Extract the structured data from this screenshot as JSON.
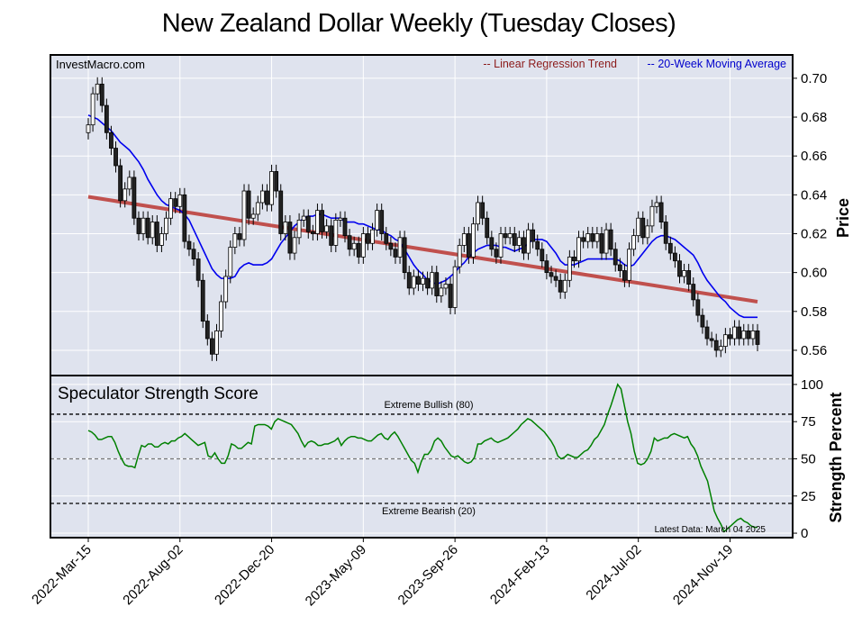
{
  "chart_data": [
    {
      "type": "candlestick",
      "title": "New Zealand Dollar Weekly (Tuesday Closes)",
      "ylabel": "Price",
      "ylim": [
        0.547,
        0.712
      ],
      "yticks": [
        "0.70",
        "0.68",
        "0.66",
        "0.64",
        "0.62",
        "0.60",
        "0.58",
        "0.56"
      ],
      "xticks": [
        "2022-Mar-15",
        "2022-Aug-02",
        "2022-Dec-20",
        "2023-May-09",
        "2023-Sep-26",
        "2024-Feb-13",
        "2024-Jul-02",
        "2024-Nov-19"
      ],
      "source": "InvestMacro.com",
      "legend": [
        "-- Linear Regression Trend",
        "-- 20-Week Moving Average"
      ],
      "closes": [
        0.676,
        0.692,
        0.697,
        0.686,
        0.672,
        0.664,
        0.655,
        0.637,
        0.643,
        0.649,
        0.628,
        0.62,
        0.628,
        0.618,
        0.626,
        0.614,
        0.62,
        0.628,
        0.638,
        0.634,
        0.64,
        0.616,
        0.612,
        0.607,
        0.596,
        0.575,
        0.566,
        0.558,
        0.57,
        0.585,
        0.598,
        0.613,
        0.62,
        0.617,
        0.642,
        0.628,
        0.63,
        0.636,
        0.642,
        0.635,
        0.652,
        0.642,
        0.62,
        0.626,
        0.61,
        0.618,
        0.627,
        0.629,
        0.621,
        0.62,
        0.632,
        0.621,
        0.624,
        0.614,
        0.627,
        0.628,
        0.619,
        0.612,
        0.615,
        0.608,
        0.62,
        0.615,
        0.622,
        0.632,
        0.62,
        0.615,
        0.612,
        0.608,
        0.618,
        0.6,
        0.592,
        0.598,
        0.594,
        0.597,
        0.592,
        0.6,
        0.588,
        0.592,
        0.594,
        0.582,
        0.603,
        0.614,
        0.62,
        0.608,
        0.625,
        0.636,
        0.628,
        0.618,
        0.612,
        0.608,
        0.62,
        0.618,
        0.62,
        0.614,
        0.618,
        0.61,
        0.622,
        0.616,
        0.612,
        0.606,
        0.6,
        0.598,
        0.596,
        0.59,
        0.596,
        0.608,
        0.606,
        0.618,
        0.616,
        0.62,
        0.616,
        0.62,
        0.61,
        0.622,
        0.612,
        0.604,
        0.601,
        0.596,
        0.612,
        0.619,
        0.628,
        0.618,
        0.624,
        0.634,
        0.636,
        0.626,
        0.615,
        0.61,
        0.606,
        0.598,
        0.601,
        0.594,
        0.586,
        0.578,
        0.572,
        0.566,
        0.565,
        0.56,
        0.562,
        0.568,
        0.566,
        0.572,
        0.566,
        0.57,
        0.566,
        0.57,
        0.563
      ],
      "regression_trend": {
        "start": 0.639,
        "end": 0.585
      },
      "moving_average": [
        0.681,
        0.68,
        0.679,
        0.677,
        0.675,
        0.673,
        0.67,
        0.667,
        0.665,
        0.663,
        0.66,
        0.657,
        0.653,
        0.648,
        0.644,
        0.64,
        0.637,
        0.635,
        0.634,
        0.633,
        0.632,
        0.63,
        0.627,
        0.622,
        0.617,
        0.612,
        0.607,
        0.602,
        0.599,
        0.597,
        0.597,
        0.597,
        0.598,
        0.602,
        0.604,
        0.605,
        0.604,
        0.604,
        0.604,
        0.605,
        0.607,
        0.611,
        0.615,
        0.618,
        0.621,
        0.624,
        0.626,
        0.628,
        0.629,
        0.629,
        0.63,
        0.63,
        0.629,
        0.628,
        0.628,
        0.628,
        0.626,
        0.626,
        0.626,
        0.625,
        0.625,
        0.624,
        0.623,
        0.622,
        0.622,
        0.62,
        0.619,
        0.617,
        0.616,
        0.612,
        0.608,
        0.604,
        0.601,
        0.599,
        0.596,
        0.595,
        0.594,
        0.595,
        0.596,
        0.598,
        0.6,
        0.603,
        0.605,
        0.608,
        0.61,
        0.612,
        0.613,
        0.614,
        0.614,
        0.614,
        0.613,
        0.613,
        0.612,
        0.611,
        0.612,
        0.613,
        0.615,
        0.617,
        0.617,
        0.617,
        0.616,
        0.613,
        0.61,
        0.606,
        0.604,
        0.604,
        0.604,
        0.605,
        0.606,
        0.607,
        0.607,
        0.607,
        0.607,
        0.607,
        0.607,
        0.607,
        0.606,
        0.604,
        0.603,
        0.604,
        0.607,
        0.61,
        0.613,
        0.616,
        0.618,
        0.619,
        0.619,
        0.618,
        0.617,
        0.615,
        0.613,
        0.611,
        0.609,
        0.605,
        0.6,
        0.596,
        0.593,
        0.59,
        0.587,
        0.585,
        0.582,
        0.58,
        0.578,
        0.577,
        0.577,
        0.577,
        0.577
      ]
    },
    {
      "type": "line",
      "title": "Speculator Strength Score",
      "ylabel": "Strength Percent",
      "ylim": [
        -3,
        106
      ],
      "yticks": [
        "100",
        "75",
        "50",
        "25",
        "0"
      ],
      "reference_lines": [
        {
          "value": 80,
          "label": "Extreme Bullish (80)",
          "style": "dashed",
          "color": "#000000"
        },
        {
          "value": 50,
          "label": "",
          "style": "dashed",
          "color": "#777777"
        },
        {
          "value": 20,
          "label": "Extreme Bearish (20)",
          "style": "dashed",
          "color": "#000000"
        }
      ],
      "annotation": "Latest Data: March 04 2025",
      "values": [
        69,
        68,
        66,
        63,
        63,
        64,
        65,
        65,
        61,
        55,
        50,
        46,
        45,
        45,
        44,
        52,
        59,
        58,
        60,
        60,
        58,
        58,
        60,
        61,
        60,
        62,
        62,
        64,
        65,
        67,
        65,
        63,
        61,
        59,
        60,
        61,
        52,
        51,
        54,
        50,
        47,
        47,
        52,
        60,
        59,
        57,
        57,
        59,
        61,
        60,
        72,
        73,
        73,
        73,
        72,
        70,
        75,
        77,
        76,
        75,
        74,
        73,
        70,
        67,
        62,
        58,
        61,
        62,
        61,
        59,
        59,
        60,
        60,
        61,
        62,
        64,
        59,
        62,
        64,
        65,
        65,
        64,
        64,
        63,
        62,
        62,
        64,
        66,
        67,
        64,
        63,
        66,
        68,
        65,
        61,
        57,
        53,
        49,
        47,
        41,
        48,
        53,
        53,
        56,
        62,
        64,
        62,
        58,
        55,
        52,
        51,
        52,
        50,
        48,
        47,
        48,
        51,
        60,
        60,
        62,
        63,
        64,
        62,
        61,
        62,
        63,
        64,
        66,
        68,
        70,
        73,
        75,
        77,
        76,
        74,
        72,
        70,
        68,
        65,
        62,
        58,
        52,
        50,
        51,
        53,
        52,
        51,
        51,
        53,
        55,
        56,
        59,
        63,
        65,
        69,
        73,
        80,
        86,
        93,
        100,
        97,
        86,
        75,
        67,
        55,
        47,
        46,
        47,
        50,
        55,
        64,
        62,
        63,
        64,
        64,
        66,
        67,
        66,
        65,
        64,
        65,
        60,
        57,
        52,
        45,
        40,
        35,
        25,
        15,
        10,
        6,
        1,
        3,
        5,
        7,
        9,
        10,
        8,
        7,
        5,
        4,
        4
      ]
    }
  ]
}
